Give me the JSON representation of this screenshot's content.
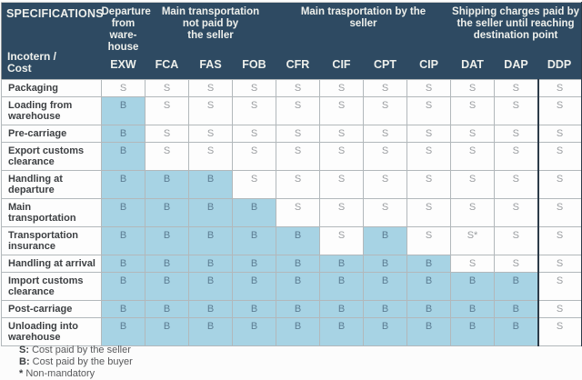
{
  "header": {
    "specifications_label": "SPECIFICATIONS",
    "incoterm_cost_label": "Incotern /\nCost",
    "groups": [
      {
        "title": "Departure\nfrom\nware-\nhouse",
        "codes": [
          "EXW"
        ]
      },
      {
        "title": "Main transportation\nnot paid by\nthe seller",
        "codes": [
          "FCA",
          "FAS",
          "FOB"
        ]
      },
      {
        "title": "Main trasportation by the\nseller",
        "codes": [
          "CFR",
          "CIF",
          "CPT",
          "CIP"
        ]
      },
      {
        "title": "Shipping charges paid by\nthe seller until reaching\ndestination point",
        "codes": [
          "DAT",
          "DAP",
          "DDP"
        ]
      }
    ]
  },
  "table": {
    "columns": [
      "EXW",
      "FCA",
      "FAS",
      "FOB",
      "CFR",
      "CIF",
      "CPT",
      "CIP",
      "DAT",
      "DAP",
      "DDP"
    ],
    "rows": [
      {
        "label": "Packaging",
        "values": [
          "S",
          "S",
          "S",
          "S",
          "S",
          "S",
          "S",
          "S",
          "S",
          "S",
          "S"
        ]
      },
      {
        "label": "Loading from warehouse",
        "values": [
          "B",
          "S",
          "S",
          "S",
          "S",
          "S",
          "S",
          "S",
          "S",
          "S",
          "S"
        ]
      },
      {
        "label": "Pre-carriage",
        "values": [
          "B",
          "S",
          "S",
          "S",
          "S",
          "S",
          "S",
          "S",
          "S",
          "S",
          "S"
        ]
      },
      {
        "label": "Export customs clearance",
        "values": [
          "B",
          "S",
          "S",
          "S",
          "S",
          "S",
          "S",
          "S",
          "S",
          "S",
          "S"
        ]
      },
      {
        "label": "Handling at departure",
        "values": [
          "B",
          "B",
          "B",
          "S",
          "S",
          "S",
          "S",
          "S",
          "S",
          "S",
          "S"
        ]
      },
      {
        "label": "Main transportation",
        "values": [
          "B",
          "B",
          "B",
          "B",
          "S",
          "S",
          "S",
          "S",
          "S",
          "S",
          "S"
        ]
      },
      {
        "label": "Transportation insurance",
        "values": [
          "B",
          "B",
          "B",
          "B",
          "B",
          "S",
          "B",
          "S",
          "S*",
          "S",
          "S"
        ]
      },
      {
        "label": "Handling at arrival",
        "values": [
          "B",
          "B",
          "B",
          "B",
          "B",
          "B",
          "B",
          "B",
          "S",
          "S",
          "S"
        ]
      },
      {
        "label": "Import customs clearance",
        "values": [
          "B",
          "B",
          "B",
          "B",
          "B",
          "B",
          "B",
          "B",
          "B",
          "B",
          "S"
        ]
      },
      {
        "label": "Post-carriage",
        "values": [
          "B",
          "B",
          "B",
          "B",
          "B",
          "B",
          "B",
          "B",
          "B",
          "B",
          "S"
        ]
      },
      {
        "label": "Unloading into warehouse",
        "values": [
          "B",
          "B",
          "B",
          "B",
          "B",
          "B",
          "B",
          "B",
          "B",
          "B",
          "S"
        ]
      }
    ]
  },
  "legend": {
    "items": [
      {
        "prefix": "S:",
        "text": "Cost paid by the seller"
      },
      {
        "prefix": "B:",
        "text": "Cost paid by the buyer"
      },
      {
        "prefix": "*",
        "text": "Non-mandatory"
      }
    ]
  },
  "colors": {
    "header_bg": "#2e4a62",
    "buyer_cell_bg": "#a7d3e4",
    "buyer_text": "#5c7d93",
    "seller_text": "#9a9da0",
    "dark_column_border": "#2c3b49"
  }
}
